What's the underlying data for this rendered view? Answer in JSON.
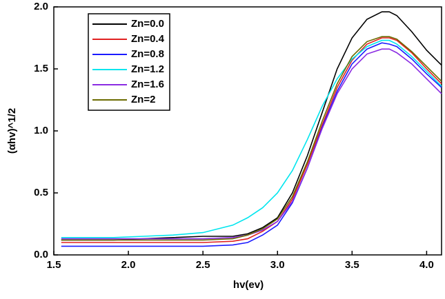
{
  "chart_data": {
    "type": "line",
    "x_label": "hv(ev)",
    "y_label": "(αhv)^1/2",
    "x": [
      1.55,
      1.7,
      1.9,
      2.1,
      2.3,
      2.5,
      2.7,
      2.8,
      2.9,
      3.0,
      3.1,
      3.2,
      3.3,
      3.4,
      3.5,
      3.6,
      3.7,
      3.75,
      3.8,
      3.9,
      4.0,
      4.1
    ],
    "series": [
      {
        "name": "Zn=0.0",
        "color": "#000000",
        "values": [
          0.12,
          0.12,
          0.12,
          0.13,
          0.14,
          0.15,
          0.15,
          0.17,
          0.22,
          0.3,
          0.5,
          0.8,
          1.15,
          1.5,
          1.75,
          1.9,
          1.96,
          1.96,
          1.93,
          1.8,
          1.65,
          1.53
        ]
      },
      {
        "name": "Zn=0.4",
        "color": "#e02020",
        "values": [
          0.1,
          0.1,
          0.1,
          0.1,
          0.1,
          0.1,
          0.11,
          0.13,
          0.19,
          0.27,
          0.45,
          0.73,
          1.05,
          1.35,
          1.57,
          1.7,
          1.75,
          1.75,
          1.73,
          1.63,
          1.5,
          1.38
        ]
      },
      {
        "name": "Zn=0.8",
        "color": "#1a1aff",
        "values": [
          0.07,
          0.07,
          0.07,
          0.07,
          0.07,
          0.07,
          0.08,
          0.1,
          0.16,
          0.24,
          0.42,
          0.7,
          1.03,
          1.32,
          1.54,
          1.66,
          1.71,
          1.7,
          1.68,
          1.58,
          1.46,
          1.35
        ]
      },
      {
        "name": "Zn=1.2",
        "color": "#00e5ee",
        "values": [
          0.14,
          0.14,
          0.14,
          0.15,
          0.16,
          0.18,
          0.24,
          0.3,
          0.38,
          0.5,
          0.68,
          0.93,
          1.2,
          1.42,
          1.58,
          1.68,
          1.73,
          1.73,
          1.7,
          1.6,
          1.48,
          1.36
        ]
      },
      {
        "name": "Zn=1.6",
        "color": "#8a2be2",
        "values": [
          0.13,
          0.13,
          0.13,
          0.13,
          0.13,
          0.13,
          0.14,
          0.16,
          0.2,
          0.27,
          0.43,
          0.7,
          1.02,
          1.3,
          1.5,
          1.62,
          1.66,
          1.66,
          1.63,
          1.54,
          1.42,
          1.3
        ]
      },
      {
        "name": "Zn=2",
        "color": "#6b6b00",
        "values": [
          0.12,
          0.12,
          0.12,
          0.12,
          0.12,
          0.12,
          0.13,
          0.16,
          0.21,
          0.29,
          0.47,
          0.75,
          1.08,
          1.38,
          1.6,
          1.72,
          1.76,
          1.76,
          1.74,
          1.64,
          1.52,
          1.4
        ]
      }
    ],
    "xlim": [
      1.5,
      4.1
    ],
    "xticks": [
      1.5,
      {
        "value": 2,
        "label": "2.0"
      },
      2.5,
      {
        "value": 3,
        "label": "3.0"
      },
      3.5,
      {
        "value": 4,
        "label": "4.0"
      }
    ],
    "ylim": [
      0,
      2
    ],
    "yticks": [
      {
        "value": 0,
        "label": "0.0"
      },
      0.5,
      {
        "value": 1,
        "label": "1.0"
      },
      1.5,
      {
        "value": 2,
        "label": "2.0"
      }
    ],
    "legend": "upper-left"
  }
}
